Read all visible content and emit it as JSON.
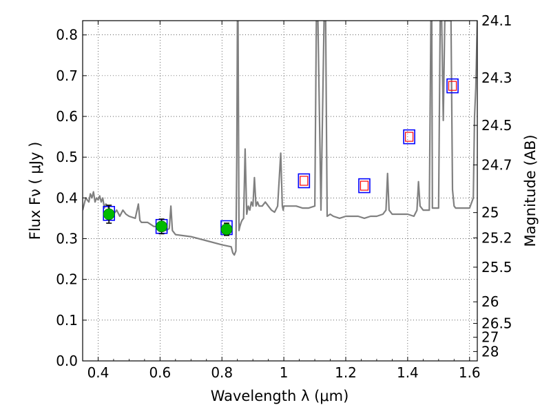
{
  "chart_data": {
    "type": "line",
    "xlabel": "Wavelength  λ (μm)",
    "ylabel": "Flux  Fν  ( μJy )",
    "ylabel_right": "Magnitude (AB)",
    "xlim": [
      0.35,
      1.625
    ],
    "ylim": [
      0.0,
      0.835
    ],
    "grid": true,
    "x_ticks": [
      0.4,
      0.6,
      0.8,
      1.0,
      1.2,
      1.4,
      1.6
    ],
    "x_tick_labels": [
      "0.4",
      "0.6",
      "0.8",
      "1",
      "1.2",
      "1.4",
      "1.6"
    ],
    "y_ticks": [
      0.0,
      0.1,
      0.2,
      0.3,
      0.4,
      0.5,
      0.6,
      0.7,
      0.8
    ],
    "y_tick_labels": [
      "0.0",
      "0.1",
      "0.2",
      "0.3",
      "0.4",
      "0.5",
      "0.6",
      "0.7",
      "0.8"
    ],
    "right_ticks": [
      {
        "flux": 0.835,
        "label": "24.1"
      },
      {
        "flux": 0.695,
        "label": "24.3"
      },
      {
        "flux": 0.578,
        "label": "24.5"
      },
      {
        "flux": 0.481,
        "label": "24.7"
      },
      {
        "flux": 0.364,
        "label": "25"
      },
      {
        "flux": 0.302,
        "label": "25.2"
      },
      {
        "flux": 0.23,
        "label": "25.5"
      },
      {
        "flux": 0.145,
        "label": "26"
      },
      {
        "flux": 0.092,
        "label": "26.5"
      },
      {
        "flux": 0.058,
        "label": "27"
      },
      {
        "flux": 0.023,
        "label": "28"
      }
    ],
    "series": [
      {
        "kind": "model_spectrum",
        "color": "#808080",
        "x": [
          0.35,
          0.36,
          0.37,
          0.375,
          0.38,
          0.385,
          0.39,
          0.395,
          0.4,
          0.405,
          0.41,
          0.415,
          0.42,
          0.425,
          0.43,
          0.44,
          0.45,
          0.46,
          0.47,
          0.48,
          0.49,
          0.5,
          0.52,
          0.53,
          0.535,
          0.54,
          0.56,
          0.58,
          0.6,
          0.62,
          0.63,
          0.635,
          0.64,
          0.65,
          0.7,
          0.75,
          0.8,
          0.83,
          0.835,
          0.84,
          0.845,
          0.848,
          0.85,
          0.852,
          0.855,
          0.858,
          0.862,
          0.865,
          0.87,
          0.875,
          0.88,
          0.885,
          0.89,
          0.895,
          0.9,
          0.905,
          0.91,
          0.915,
          0.92,
          0.925,
          0.93,
          0.94,
          0.95,
          0.96,
          0.97,
          0.98,
          0.99,
          0.995,
          0.998,
          1.0,
          1.01,
          1.02,
          1.04,
          1.06,
          1.08,
          1.1,
          1.105,
          1.11,
          1.12,
          1.13,
          1.135,
          1.14,
          1.15,
          1.16,
          1.18,
          1.2,
          1.22,
          1.24,
          1.26,
          1.28,
          1.3,
          1.32,
          1.33,
          1.335,
          1.34,
          1.35,
          1.36,
          1.38,
          1.4,
          1.42,
          1.43,
          1.435,
          1.44,
          1.45,
          1.46,
          1.47,
          1.475,
          1.478,
          1.48,
          1.49,
          1.5,
          1.505,
          1.51,
          1.515,
          1.52,
          1.525,
          1.53,
          1.535,
          1.54,
          1.545,
          1.55,
          1.555,
          1.56,
          1.58,
          1.6,
          1.612,
          1.616,
          1.62,
          1.625
        ],
        "y": [
          0.37,
          0.4,
          0.39,
          0.41,
          0.4,
          0.415,
          0.39,
          0.4,
          0.395,
          0.405,
          0.39,
          0.4,
          0.375,
          0.385,
          0.38,
          0.37,
          0.36,
          0.37,
          0.355,
          0.37,
          0.36,
          0.355,
          0.35,
          0.385,
          0.345,
          0.34,
          0.34,
          0.33,
          0.33,
          0.32,
          0.325,
          0.38,
          0.32,
          0.31,
          0.305,
          0.295,
          0.285,
          0.28,
          0.265,
          0.26,
          0.27,
          0.5,
          0.835,
          0.835,
          0.32,
          0.33,
          0.34,
          0.345,
          0.35,
          0.52,
          0.36,
          0.38,
          0.37,
          0.39,
          0.38,
          0.45,
          0.38,
          0.39,
          0.38,
          0.38,
          0.38,
          0.39,
          0.38,
          0.37,
          0.365,
          0.38,
          0.51,
          0.38,
          0.37,
          0.38,
          0.38,
          0.38,
          0.38,
          0.375,
          0.375,
          0.38,
          0.835,
          0.835,
          0.37,
          0.835,
          0.835,
          0.355,
          0.36,
          0.355,
          0.35,
          0.355,
          0.355,
          0.355,
          0.35,
          0.355,
          0.355,
          0.36,
          0.37,
          0.46,
          0.37,
          0.36,
          0.36,
          0.36,
          0.36,
          0.355,
          0.37,
          0.44,
          0.38,
          0.37,
          0.37,
          0.37,
          0.835,
          0.835,
          0.375,
          0.375,
          0.375,
          0.835,
          0.835,
          0.59,
          0.835,
          0.835,
          0.835,
          0.835,
          0.835,
          0.42,
          0.38,
          0.375,
          0.375,
          0.375,
          0.375,
          0.4,
          0.6,
          0.67,
          0.835
        ]
      },
      {
        "kind": "model_photometry",
        "marker": "square",
        "edgecolor": "#0000ff",
        "x": [
          0.435,
          0.605,
          0.815,
          1.065,
          1.26,
          1.405,
          1.545
        ],
        "y": [
          0.362,
          0.33,
          0.327,
          0.442,
          0.43,
          0.55,
          0.675
        ]
      },
      {
        "kind": "observed",
        "marker": "square",
        "edgecolor": "#ff0000",
        "x": [
          1.065,
          1.26,
          1.405,
          1.545
        ],
        "y": [
          0.442,
          0.43,
          0.55,
          0.675
        ]
      },
      {
        "kind": "observed",
        "marker": "circle",
        "color": "#00bb00",
        "x": [
          0.435,
          0.605,
          0.815
        ],
        "y": [
          0.36,
          0.33,
          0.323
        ],
        "yerr": [
          0.022,
          0.018,
          0.015
        ]
      }
    ]
  }
}
